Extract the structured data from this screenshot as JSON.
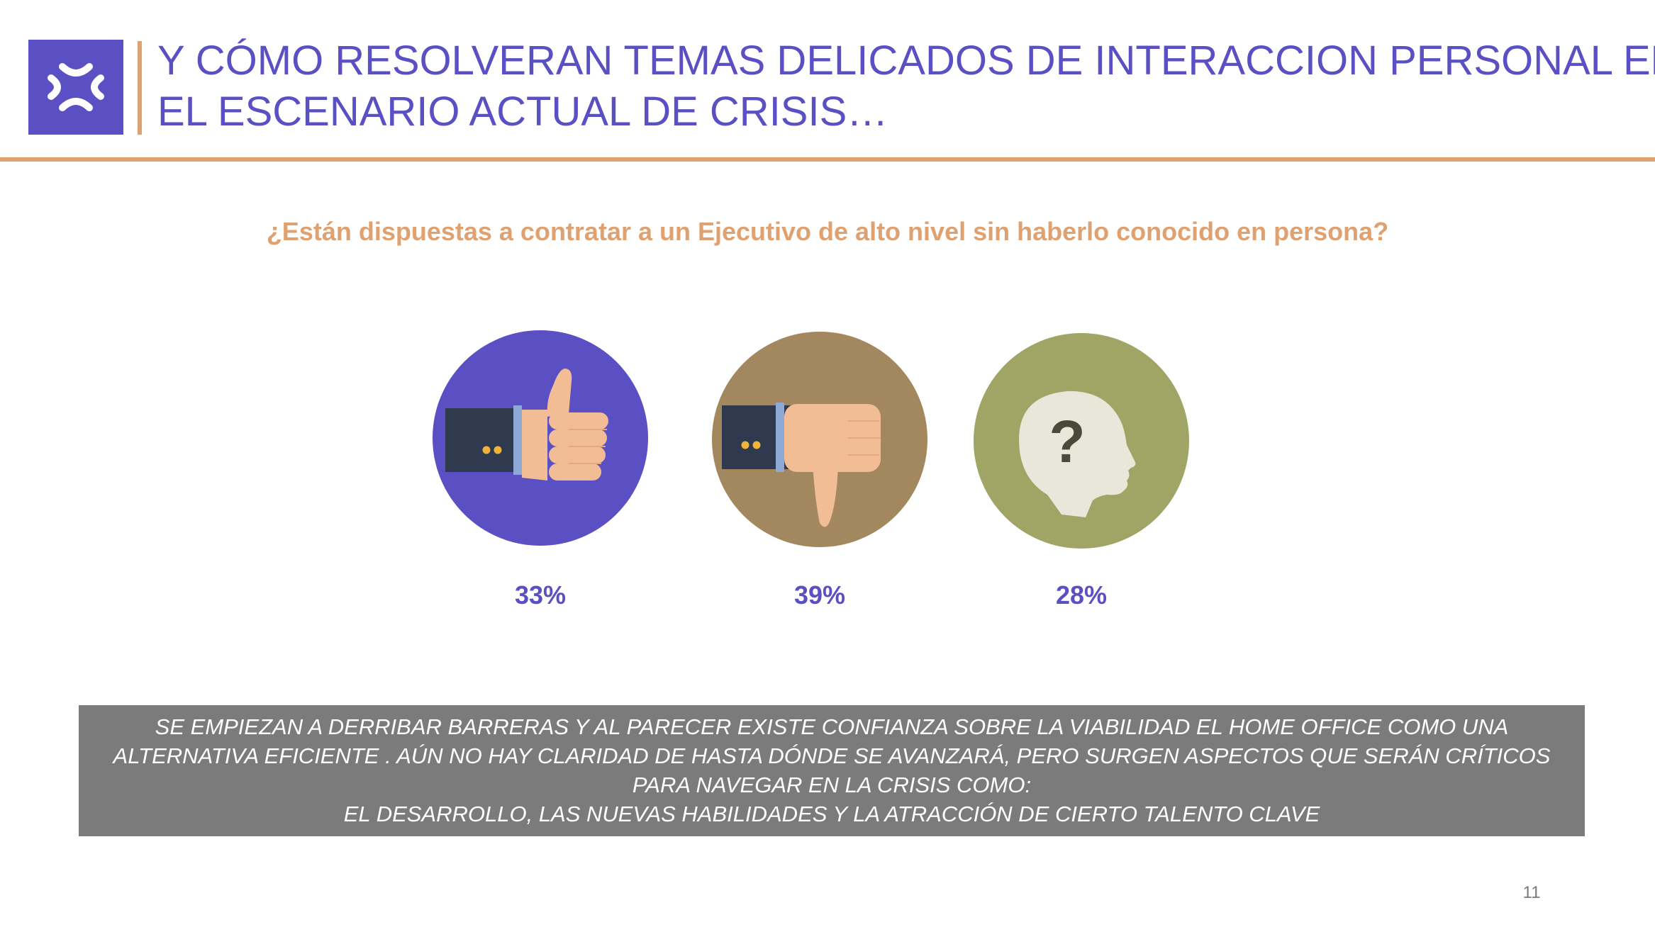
{
  "header": {
    "title_line1": "Y CÓMO RESOLVERAN TEMAS DELICADOS DE INTERACCION PERSONAL EN",
    "title_line2": "EL ESCENARIO ACTUAL DE CRISIS…",
    "logo_icon": "brand-logo-icon",
    "accent_color": "#e0a171",
    "brand_color": "#5b4fc4"
  },
  "question": "¿Están dispuestas a contratar a un Ejecutivo  de alto nivel sin haberlo conocido en persona?",
  "options": [
    {
      "icon": "thumbs-up-icon",
      "percent": "33%",
      "color": "#5b4fc4"
    },
    {
      "icon": "thumbs-down-icon",
      "percent": "39%",
      "color": "#a3885f"
    },
    {
      "icon": "question-head-icon",
      "percent": "28%",
      "color": "#a0a464"
    }
  ],
  "conclusion": {
    "line1": "SE EMPIEZAN A DERRIBAR BARRERAS Y AL PARECER EXISTE CONFIANZA SOBRE LA VIABILIDAD EL HOME OFFICE COMO UNA",
    "line2": "ALTERNATIVA EFICIENTE . AÚN NO HAY CLARIDAD DE HASTA DÓNDE SE AVANZARÁ, PERO SURGEN ASPECTOS QUE SERÁN CRÍTICOS",
    "line3": "PARA NAVEGAR EN LA CRISIS COMO:",
    "line4": "EL DESARROLLO, LAS NUEVAS HABILIDADES Y LA ATRACCIÓN DE CIERTO TALENTO CLAVE",
    "background": "#7b7b7b"
  },
  "page_number": "11"
}
